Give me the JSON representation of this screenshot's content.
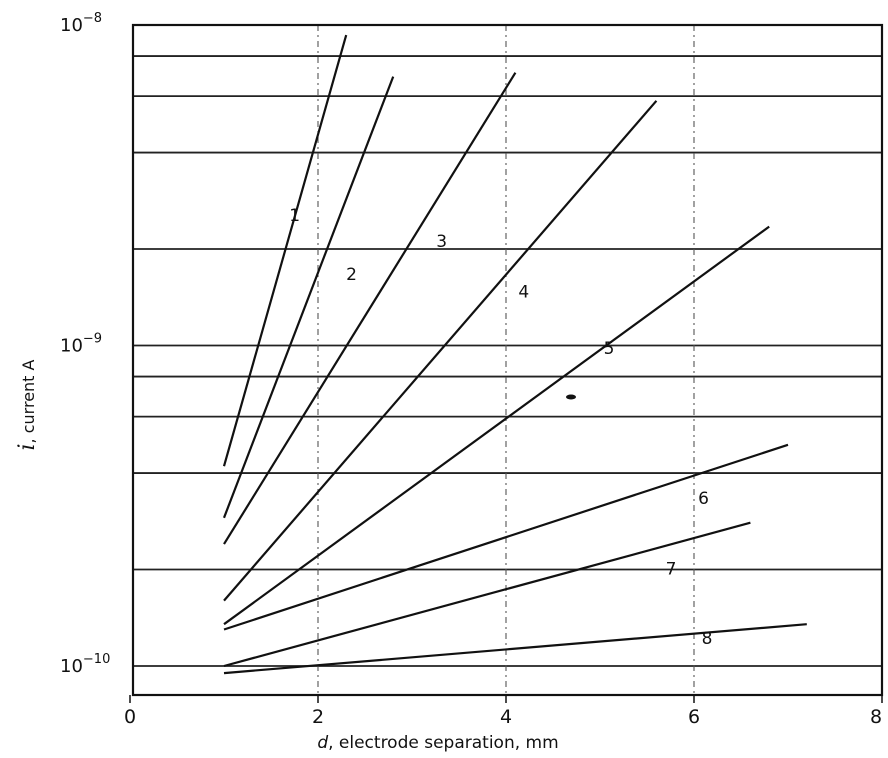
{
  "chart_data": {
    "type": "line",
    "ylabel_var": "i",
    "ylabel_rest": ", current A",
    "xlabel_var": "d",
    "xlabel_rest": ", electrode separation, mm",
    "y_scale": "log",
    "xlim": [
      0,
      8
    ],
    "ylim": [
      9e-11,
      1e-08
    ],
    "x_ticks": [
      "0",
      "2",
      "4",
      "6",
      "8"
    ],
    "y_ticks": [
      {
        "value": 1e-10,
        "base": "10",
        "exp": "−10"
      },
      {
        "value": 1e-09,
        "base": "10",
        "exp": "−9"
      },
      {
        "value": 1e-08,
        "base": "10",
        "exp": "−8"
      }
    ],
    "grid": {
      "horizontal": [
        1e-10,
        2e-10,
        4e-10,
        6e-10,
        8e-10,
        1e-09,
        2e-09,
        4e-09,
        6e-09,
        8e-09
      ],
      "vertical": [
        2,
        4,
        6
      ]
    },
    "series": [
      {
        "name": "1",
        "x": [
          1.0,
          2.3
        ],
        "y": [
          4.2e-10,
          9.3e-09
        ]
      },
      {
        "name": "2",
        "x": [
          1.0,
          2.8
        ],
        "y": [
          2.9e-10,
          6.9e-09
        ]
      },
      {
        "name": "3",
        "x": [
          1.0,
          4.1
        ],
        "y": [
          2.4e-10,
          7.1e-09
        ]
      },
      {
        "name": "4",
        "x": [
          1.0,
          5.6
        ],
        "y": [
          1.6e-10,
          5.8e-09
        ]
      },
      {
        "name": "5",
        "x": [
          1.0,
          6.8
        ],
        "y": [
          1.35e-10,
          2.35e-09
        ]
      },
      {
        "name": "6",
        "x": [
          1.0,
          7.0
        ],
        "y": [
          1.3e-10,
          4.9e-10
        ]
      },
      {
        "name": "7",
        "x": [
          1.0,
          6.6
        ],
        "y": [
          1e-10,
          2.8e-10
        ]
      },
      {
        "name": "8",
        "x": [
          1.0,
          7.2
        ],
        "y": [
          9.5e-11,
          1.35e-10
        ]
      }
    ]
  }
}
